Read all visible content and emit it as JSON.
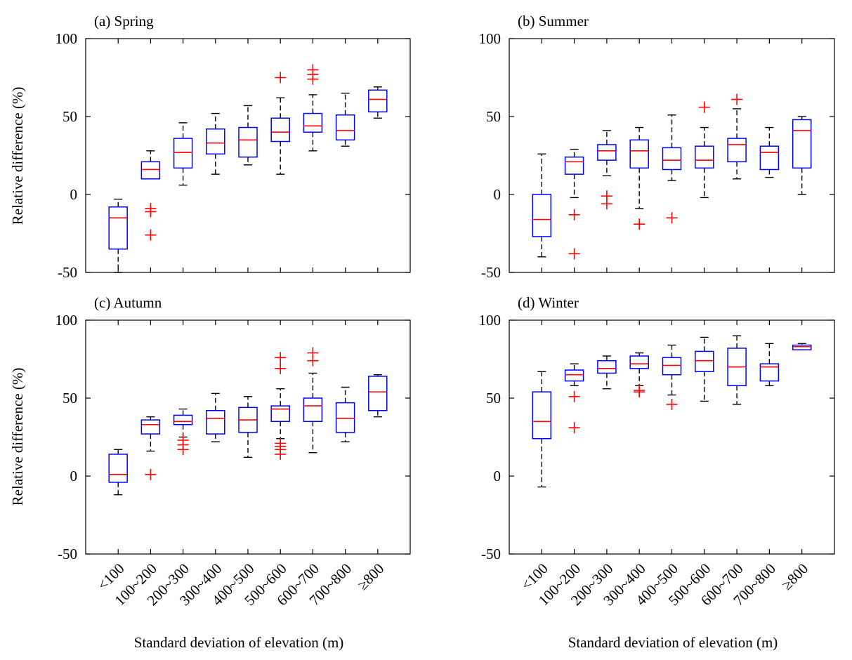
{
  "figure": {
    "ylabel": "Relative difference (%)",
    "xlabel": "Standard deviation of elevation (m)",
    "categories": [
      "<100",
      "100~200",
      "200~300",
      "300~400",
      "400~500",
      "500~600",
      "600~700",
      "700~800",
      "≥800"
    ],
    "yticks": [
      "100",
      "50",
      "0",
      "-50"
    ]
  },
  "colors": {
    "box": "#0000ff",
    "median": "#ff0000",
    "outlier": "#ff0000",
    "whisker": "#000000"
  },
  "chart_data": [
    {
      "type": "box",
      "panel_label": "(a) Spring",
      "ylim": [
        -50,
        100
      ],
      "boxes": [
        {
          "category": "<100",
          "whisker_low": -50,
          "q1": -35,
          "median": -15,
          "q3": -8,
          "whisker_high": -3,
          "outliers": []
        },
        {
          "category": "100~200",
          "whisker_low": 10,
          "q1": 10,
          "median": 16,
          "q3": 21,
          "whisker_high": 28,
          "outliers": [
            -9,
            -11,
            -26
          ]
        },
        {
          "category": "200~300",
          "whisker_low": 6,
          "q1": 17,
          "median": 27,
          "q3": 36,
          "whisker_high": 46,
          "outliers": []
        },
        {
          "category": "300~400",
          "whisker_low": 13,
          "q1": 26,
          "median": 33,
          "q3": 42,
          "whisker_high": 52,
          "outliers": []
        },
        {
          "category": "400~500",
          "whisker_low": 19,
          "q1": 24,
          "median": 35,
          "q3": 43,
          "whisker_high": 57,
          "outliers": []
        },
        {
          "category": "500~600",
          "whisker_low": 13,
          "q1": 34,
          "median": 40,
          "q3": 49,
          "whisker_high": 62,
          "outliers": [
            75
          ]
        },
        {
          "category": "600~700",
          "whisker_low": 28,
          "q1": 40,
          "median": 44,
          "q3": 52,
          "whisker_high": 64,
          "outliers": [
            74,
            77,
            80
          ]
        },
        {
          "category": "700~800",
          "whisker_low": 31,
          "q1": 35,
          "median": 41,
          "q3": 51,
          "whisker_high": 65,
          "outliers": []
        },
        {
          "category": "≥800",
          "whisker_low": 49,
          "q1": 53,
          "median": 61,
          "q3": 67,
          "whisker_high": 69,
          "outliers": []
        }
      ]
    },
    {
      "type": "box",
      "panel_label": "(b) Summer",
      "ylim": [
        -50,
        100
      ],
      "boxes": [
        {
          "category": "<100",
          "whisker_low": -40,
          "q1": -27,
          "median": -16,
          "q3": 0,
          "whisker_high": 26,
          "outliers": []
        },
        {
          "category": "100~200",
          "whisker_low": -2,
          "q1": 13,
          "median": 21,
          "q3": 24,
          "whisker_high": 29,
          "outliers": [
            -13,
            -38
          ]
        },
        {
          "category": "200~300",
          "whisker_low": 12,
          "q1": 22,
          "median": 28,
          "q3": 32,
          "whisker_high": 41,
          "outliers": [
            -1,
            -6
          ]
        },
        {
          "category": "300~400",
          "whisker_low": -9,
          "q1": 17,
          "median": 28,
          "q3": 35,
          "whisker_high": 43,
          "outliers": [
            -19
          ]
        },
        {
          "category": "400~500",
          "whisker_low": 9,
          "q1": 16,
          "median": 22,
          "q3": 30,
          "whisker_high": 51,
          "outliers": [
            -15
          ]
        },
        {
          "category": "500~600",
          "whisker_low": -2,
          "q1": 17,
          "median": 22,
          "q3": 31,
          "whisker_high": 43,
          "outliers": [
            56
          ]
        },
        {
          "category": "600~700",
          "whisker_low": 10,
          "q1": 21,
          "median": 32,
          "q3": 36,
          "whisker_high": 55,
          "outliers": [
            61
          ]
        },
        {
          "category": "700~800",
          "whisker_low": 11,
          "q1": 16,
          "median": 27,
          "q3": 31,
          "whisker_high": 43,
          "outliers": []
        },
        {
          "category": "≥800",
          "whisker_low": 0,
          "q1": 17,
          "median": 41,
          "q3": 48,
          "whisker_high": 50,
          "outliers": []
        }
      ]
    },
    {
      "type": "box",
      "panel_label": "(c) Autumn",
      "ylim": [
        -50,
        100
      ],
      "boxes": [
        {
          "category": "<100",
          "whisker_low": -12,
          "q1": -4,
          "median": 1,
          "q3": 14,
          "whisker_high": 17,
          "outliers": []
        },
        {
          "category": "100~200",
          "whisker_low": 16,
          "q1": 27,
          "median": 33,
          "q3": 36,
          "whisker_high": 38,
          "outliers": [
            1
          ]
        },
        {
          "category": "200~300",
          "whisker_low": 25,
          "q1": 33,
          "median": 35,
          "q3": 39,
          "whisker_high": 43,
          "outliers": [
            23,
            20,
            17
          ]
        },
        {
          "category": "300~400",
          "whisker_low": 22,
          "q1": 27,
          "median": 37,
          "q3": 42,
          "whisker_high": 53,
          "outliers": []
        },
        {
          "category": "400~500",
          "whisker_low": 12,
          "q1": 28,
          "median": 36,
          "q3": 44,
          "whisker_high": 51,
          "outliers": []
        },
        {
          "category": "500~600",
          "whisker_low": 24,
          "q1": 35,
          "median": 43,
          "q3": 45,
          "whisker_high": 56,
          "outliers": [
            76,
            69,
            21,
            19,
            17,
            14
          ]
        },
        {
          "category": "600~700",
          "whisker_low": 15,
          "q1": 35,
          "median": 45,
          "q3": 50,
          "whisker_high": 66,
          "outliers": [
            79,
            74
          ]
        },
        {
          "category": "700~800",
          "whisker_low": 22,
          "q1": 28,
          "median": 37,
          "q3": 47,
          "whisker_high": 57,
          "outliers": []
        },
        {
          "category": "≥800",
          "whisker_low": 38,
          "q1": 42,
          "median": 54,
          "q3": 64,
          "whisker_high": 65,
          "outliers": []
        }
      ]
    },
    {
      "type": "box",
      "panel_label": "(d) Winter",
      "ylim": [
        -50,
        100
      ],
      "boxes": [
        {
          "category": "<100",
          "whisker_low": -7,
          "q1": 24,
          "median": 35,
          "q3": 54,
          "whisker_high": 67,
          "outliers": []
        },
        {
          "category": "100~200",
          "whisker_low": 58,
          "q1": 61,
          "median": 65,
          "q3": 68,
          "whisker_high": 72,
          "outliers": [
            51,
            31
          ]
        },
        {
          "category": "200~300",
          "whisker_low": 56,
          "q1": 66,
          "median": 69,
          "q3": 74,
          "whisker_high": 77,
          "outliers": []
        },
        {
          "category": "300~400",
          "whisker_low": 58,
          "q1": 69,
          "median": 72,
          "q3": 77,
          "whisker_high": 79,
          "outliers": [
            55,
            54
          ]
        },
        {
          "category": "400~500",
          "whisker_low": 52,
          "q1": 65,
          "median": 71,
          "q3": 76,
          "whisker_high": 84,
          "outliers": [
            46
          ]
        },
        {
          "category": "500~600",
          "whisker_low": 48,
          "q1": 67,
          "median": 74,
          "q3": 80,
          "whisker_high": 89,
          "outliers": []
        },
        {
          "category": "600~700",
          "whisker_low": 46,
          "q1": 58,
          "median": 70,
          "q3": 82,
          "whisker_high": 90,
          "outliers": []
        },
        {
          "category": "700~800",
          "whisker_low": 58,
          "q1": 61,
          "median": 70,
          "q3": 72,
          "whisker_high": 85,
          "outliers": []
        },
        {
          "category": "≥800",
          "whisker_low": 81,
          "q1": 81,
          "median": 83,
          "q3": 84,
          "whisker_high": 85,
          "outliers": []
        }
      ]
    }
  ]
}
